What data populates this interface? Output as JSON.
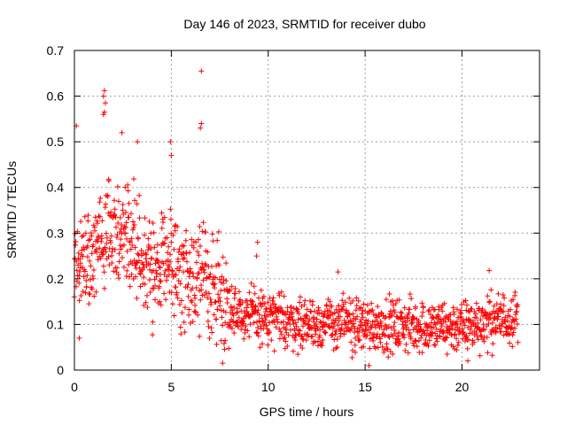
{
  "chart_data": {
    "type": "scatter",
    "title": "Day 146 of 2023, SRMTID for receiver dubo",
    "xlabel": "GPS time / hours",
    "ylabel": "SRMTID / TECUs",
    "xlim": [
      0,
      24
    ],
    "ylim": [
      0,
      0.7
    ],
    "xticks": [
      0,
      5,
      10,
      15,
      20
    ],
    "yticks": [
      0,
      0.1,
      0.2,
      0.3,
      0.4,
      0.5,
      0.6,
      0.7
    ],
    "xtick_labels": [
      "0",
      "5",
      "10",
      "15",
      "20"
    ],
    "ytick_labels": [
      "0",
      "0.1",
      "0.2",
      "0.3",
      "0.4",
      "0.5",
      "0.6",
      "0.7"
    ],
    "grid": true,
    "marker": "+",
    "color": "#ff0000",
    "data_range_hours": [
      0,
      22.9
    ],
    "trend": [
      {
        "x": 0.0,
        "y": 0.26
      },
      {
        "x": 1.0,
        "y": 0.27
      },
      {
        "x": 2.0,
        "y": 0.29
      },
      {
        "x": 3.0,
        "y": 0.3
      },
      {
        "x": 4.0,
        "y": 0.22
      },
      {
        "x": 5.0,
        "y": 0.24
      },
      {
        "x": 6.0,
        "y": 0.2
      },
      {
        "x": 7.0,
        "y": 0.19
      },
      {
        "x": 8.0,
        "y": 0.14
      },
      {
        "x": 9.0,
        "y": 0.12
      },
      {
        "x": 10.0,
        "y": 0.11
      },
      {
        "x": 12.0,
        "y": 0.105
      },
      {
        "x": 15.0,
        "y": 0.1
      },
      {
        "x": 18.0,
        "y": 0.095
      },
      {
        "x": 20.0,
        "y": 0.095
      },
      {
        "x": 22.9,
        "y": 0.12
      }
    ],
    "outliers": [
      {
        "x": 6.55,
        "y": 0.655
      },
      {
        "x": 1.55,
        "y": 0.612
      },
      {
        "x": 1.5,
        "y": 0.6
      },
      {
        "x": 1.6,
        "y": 0.585
      },
      {
        "x": 1.55,
        "y": 0.565
      },
      {
        "x": 1.5,
        "y": 0.56
      },
      {
        "x": 0.1,
        "y": 0.535
      },
      {
        "x": 2.45,
        "y": 0.52
      },
      {
        "x": 6.5,
        "y": 0.53
      },
      {
        "x": 6.55,
        "y": 0.54
      },
      {
        "x": 3.25,
        "y": 0.5
      },
      {
        "x": 4.95,
        "y": 0.5
      },
      {
        "x": 5.0,
        "y": 0.47
      },
      {
        "x": 9.45,
        "y": 0.28
      },
      {
        "x": 9.4,
        "y": 0.25
      },
      {
        "x": 21.4,
        "y": 0.218
      },
      {
        "x": 13.6,
        "y": 0.215
      },
      {
        "x": 15.2,
        "y": 0.01
      },
      {
        "x": 20.3,
        "y": 0.02
      },
      {
        "x": 0.25,
        "y": 0.07
      }
    ]
  }
}
